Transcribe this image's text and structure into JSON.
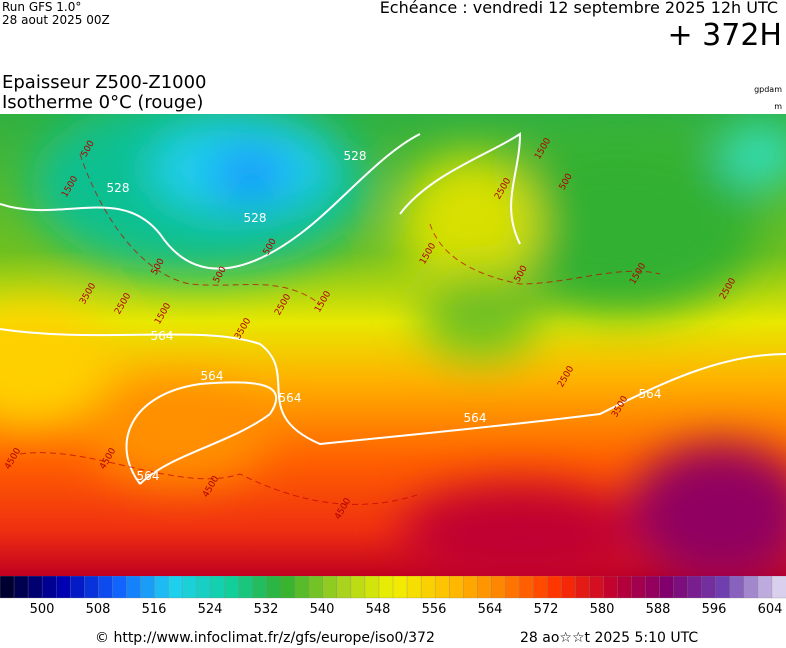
{
  "header": {
    "run": "Run GFS 1.0°",
    "run_date": "28 aout 2025 00Z",
    "valid": "Echéance : vendredi 12 septembre 2025 12h UTC",
    "lead": "+ 372H",
    "title": "Epaisseur Z500-Z1000",
    "subtitle": "Isotherme 0°C (rouge)",
    "unit_thickness": "gpdam",
    "unit_iso0": "m"
  },
  "map": {
    "thickness_labels": [
      528,
      528,
      528,
      564,
      564,
      564,
      564,
      564,
      564
    ],
    "iso0_labels": [
      500,
      1500,
      500,
      500,
      500,
      3500,
      2500,
      1500,
      2500,
      1500,
      3500,
      1500,
      500,
      2500,
      1500,
      500,
      1500,
      2500,
      2500,
      3500,
      4500,
      4500,
      4500,
      4500
    ]
  },
  "scale": {
    "labels": [
      500,
      508,
      516,
      524,
      532,
      540,
      548,
      556,
      564,
      572,
      580,
      588,
      596,
      604
    ],
    "colors": [
      "#000030",
      "#0000b0",
      "#1060ff",
      "#20d0f0",
      "#10d0a0",
      "#30b030",
      "#a0d020",
      "#f0f000",
      "#ffc000",
      "#ff8000",
      "#ff3000",
      "#c00030",
      "#800070",
      "#7040b0",
      "#d8d0ec"
    ]
  },
  "footer": {
    "source": "© http://www.infoclimat.fr/z/gfs/europe/iso0/372",
    "generated": "28 ao☆☆t 2025  5:10 UTC"
  }
}
